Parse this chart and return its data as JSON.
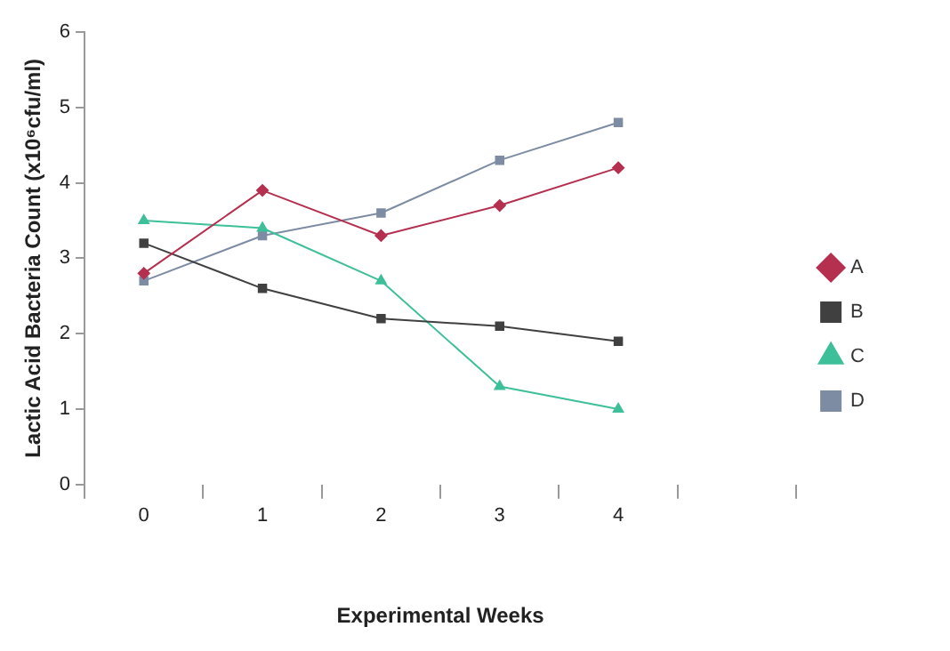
{
  "chart_data": {
    "type": "line",
    "xlabel": "Experimental Weeks",
    "ylabel": "Lactic Acid Bacteria Count (x10⁶cfu/ml)",
    "categories": [
      "0",
      "1",
      "2",
      "3",
      "4",
      null
    ],
    "series": [
      {
        "name": "A",
        "color": "#b5304f",
        "marker": "diamond",
        "values": [
          2.8,
          3.9,
          3.3,
          3.7,
          4.2,
          null
        ]
      },
      {
        "name": "B",
        "color": "#404040",
        "marker": "square",
        "values": [
          3.2,
          2.6,
          2.2,
          2.1,
          1.9,
          null
        ]
      },
      {
        "name": "C",
        "color": "#3dbf9a",
        "marker": "triangle",
        "values": [
          3.5,
          3.4,
          2.7,
          1.3,
          1.0,
          null
        ]
      },
      {
        "name": "D",
        "color": "#7d8ca3",
        "marker": "square",
        "values": [
          2.7,
          3.3,
          3.6,
          4.3,
          4.8,
          null
        ]
      }
    ],
    "ylim": [
      0,
      6
    ],
    "yticks": [
      0,
      1,
      2,
      3,
      4,
      5,
      6
    ],
    "grid": false,
    "legend": "right",
    "line_style": "solid"
  }
}
